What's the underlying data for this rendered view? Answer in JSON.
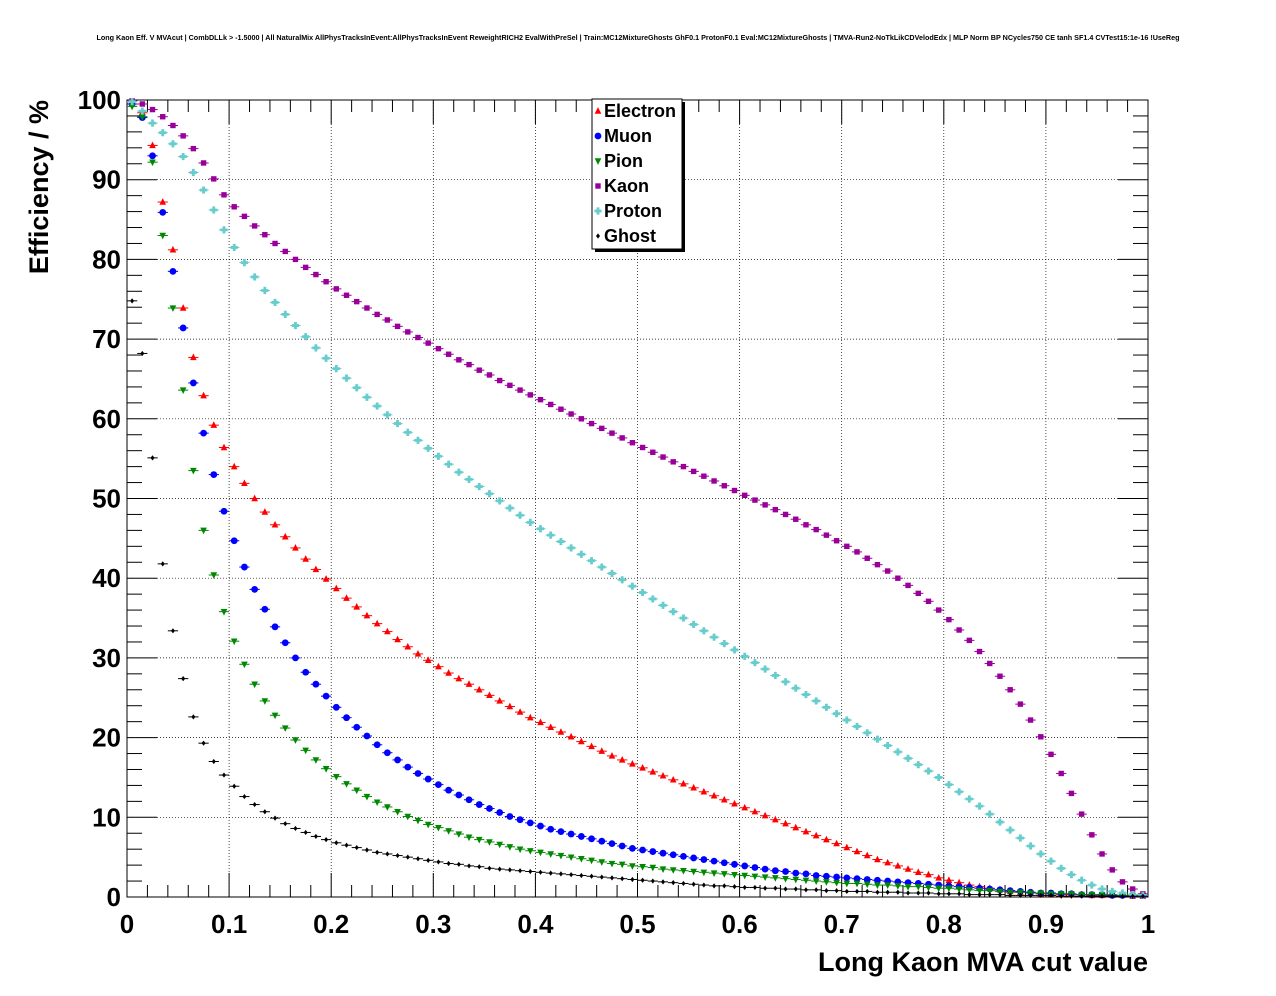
{
  "title": "Long Kaon Eff. V MVAcut | CombDLLk > -1.5000 | All NaturalMix AllPhysTracksInEvent:AllPhysTracksInEvent ReweightRICH2 EvalWithPreSel | Train:MC12MixtureGhosts GhF0.1 ProtonF0.1 Eval:MC12MixtureGhosts | TMVA-Run2-NoTkLikCDVelodEdx | MLP Norm BP NCycles750 CE tanh SF1.4 CVTest15:1e-16 !UseReg",
  "chart_data": {
    "type": "scatter",
    "title": "Long Kaon Eff. V MVAcut | CombDLLk > -1.5000 | All NaturalMix AllPhysTracksInEvent:AllPhysTracksInEvent ReweightRICH2 EvalWithPreSel | Train:MC12MixtureGhosts GhF0.1 ProtonF0.1 Eval:MC12MixtureGhosts | TMVA-Run2-NoTkLikCDVelodEdx | MLP Norm BP NCycles750 CE tanh SF1.4 CVTest15:1e-16 !UseReg",
    "xlabel": "Long Kaon MVA cut value",
    "ylabel": "Efficiency / %",
    "xlim": [
      0,
      1
    ],
    "ylim": [
      0,
      100
    ],
    "xticks": [
      "0",
      "0.1",
      "0.2",
      "0.3",
      "0.4",
      "0.5",
      "0.6",
      "0.7",
      "0.8",
      "0.9",
      "1"
    ],
    "yticks": [
      "0",
      "10",
      "20",
      "30",
      "40",
      "50",
      "60",
      "70",
      "80",
      "90",
      "100"
    ],
    "grid": true,
    "legend": "top-center",
    "x": [
      0.005,
      0.015,
      0.025,
      0.035,
      0.045,
      0.055,
      0.065,
      0.075,
      0.085,
      0.095,
      0.105,
      0.115,
      0.125,
      0.135,
      0.145,
      0.155,
      0.165,
      0.175,
      0.185,
      0.195,
      0.205,
      0.215,
      0.225,
      0.235,
      0.245,
      0.255,
      0.265,
      0.275,
      0.285,
      0.295,
      0.305,
      0.315,
      0.325,
      0.335,
      0.345,
      0.355,
      0.365,
      0.375,
      0.385,
      0.395,
      0.405,
      0.415,
      0.425,
      0.435,
      0.445,
      0.455,
      0.465,
      0.475,
      0.485,
      0.495,
      0.505,
      0.515,
      0.525,
      0.535,
      0.545,
      0.555,
      0.565,
      0.575,
      0.585,
      0.595,
      0.605,
      0.615,
      0.625,
      0.635,
      0.645,
      0.655,
      0.665,
      0.675,
      0.685,
      0.695,
      0.705,
      0.715,
      0.725,
      0.735,
      0.745,
      0.755,
      0.765,
      0.775,
      0.785,
      0.795,
      0.805,
      0.815,
      0.825,
      0.835,
      0.845,
      0.855,
      0.865,
      0.875,
      0.885,
      0.895,
      0.905,
      0.915,
      0.925,
      0.935,
      0.945,
      0.955,
      0.965,
      0.975,
      0.985,
      0.995
    ],
    "series": [
      {
        "name": "Electron",
        "color": "#ff0000",
        "marker": "triangle-up",
        "values": [
          99.8,
          98.4,
          94.3,
          87.2,
          81.2,
          73.9,
          67.7,
          62.9,
          59.2,
          56.4,
          54.0,
          51.9,
          50.0,
          48.3,
          46.7,
          45.2,
          43.8,
          42.4,
          41.1,
          39.9,
          38.7,
          37.5,
          36.4,
          35.3,
          34.3,
          33.3,
          32.3,
          31.4,
          30.5,
          29.7,
          28.9,
          28.1,
          27.4,
          26.7,
          26.0,
          25.3,
          24.6,
          23.9,
          23.2,
          22.5,
          21.9,
          21.3,
          20.7,
          20.1,
          19.5,
          18.9,
          18.3,
          17.7,
          17.2,
          16.7,
          16.2,
          15.7,
          15.2,
          14.7,
          14.2,
          13.7,
          13.2,
          12.7,
          12.2,
          11.7,
          11.2,
          10.7,
          10.2,
          9.7,
          9.2,
          8.7,
          8.2,
          7.7,
          7.2,
          6.7,
          6.2,
          5.7,
          5.2,
          4.7,
          4.3,
          3.9,
          3.5,
          3.1,
          2.8,
          2.4,
          2.1,
          1.8,
          1.5,
          1.3,
          1.1,
          0.9,
          0.7,
          0.6,
          0.5,
          0.4,
          0.4,
          0.3,
          0.3,
          0.3,
          0.2,
          0.2,
          0.2,
          0.2,
          0.1,
          0.1
        ]
      },
      {
        "name": "Muon",
        "color": "#0000ff",
        "marker": "circle",
        "values": [
          99.5,
          97.8,
          93.0,
          85.9,
          78.5,
          71.4,
          64.5,
          58.2,
          53.0,
          48.4,
          44.7,
          41.4,
          38.6,
          36.1,
          33.9,
          31.9,
          30.0,
          28.2,
          26.7,
          25.2,
          23.8,
          22.5,
          21.3,
          20.2,
          19.1,
          18.1,
          17.2,
          16.3,
          15.5,
          14.8,
          14.1,
          13.4,
          12.8,
          12.2,
          11.6,
          11.1,
          10.6,
          10.1,
          9.7,
          9.3,
          8.9,
          8.5,
          8.2,
          7.9,
          7.6,
          7.3,
          7.0,
          6.7,
          6.4,
          6.1,
          5.9,
          5.7,
          5.5,
          5.3,
          5.1,
          4.9,
          4.7,
          4.5,
          4.3,
          4.1,
          3.9,
          3.7,
          3.5,
          3.3,
          3.2,
          3.0,
          2.9,
          2.7,
          2.6,
          2.5,
          2.4,
          2.3,
          2.2,
          2.1,
          2.0,
          1.9,
          1.8,
          1.7,
          1.6,
          1.5,
          1.4,
          1.3,
          1.2,
          1.1,
          1.0,
          0.9,
          0.8,
          0.7,
          0.6,
          0.5,
          0.5,
          0.4,
          0.4,
          0.3,
          0.3,
          0.3,
          0.2,
          0.2,
          0.2,
          0.2
        ]
      },
      {
        "name": "Pion",
        "color": "#008800",
        "marker": "triangle-down",
        "values": [
          99.2,
          97.9,
          92.2,
          83.0,
          73.9,
          63.6,
          53.5,
          46.0,
          40.4,
          35.8,
          32.1,
          29.2,
          26.7,
          24.6,
          22.8,
          21.2,
          19.7,
          18.4,
          17.2,
          16.1,
          15.1,
          14.2,
          13.4,
          12.6,
          11.9,
          11.3,
          10.7,
          10.1,
          9.6,
          9.1,
          8.7,
          8.3,
          7.9,
          7.5,
          7.2,
          6.9,
          6.6,
          6.3,
          6.0,
          5.8,
          5.6,
          5.4,
          5.2,
          5.0,
          4.8,
          4.6,
          4.4,
          4.2,
          4.1,
          3.9,
          3.8,
          3.7,
          3.5,
          3.4,
          3.3,
          3.2,
          3.1,
          3.0,
          2.9,
          2.8,
          2.7,
          2.6,
          2.5,
          2.4,
          2.3,
          2.2,
          2.1,
          2.0,
          1.9,
          1.8,
          1.7,
          1.7,
          1.6,
          1.5,
          1.5,
          1.4,
          1.3,
          1.3,
          1.2,
          1.1,
          1.1,
          1.0,
          0.9,
          0.8,
          0.8,
          0.7,
          0.6,
          0.6,
          0.5,
          0.5,
          0.4,
          0.4,
          0.4,
          0.3,
          0.3,
          0.3,
          0.3,
          0.2,
          0.2,
          0.2
        ]
      },
      {
        "name": "Kaon",
        "color": "#990099",
        "marker": "square",
        "values": [
          99.9,
          99.5,
          98.8,
          97.9,
          96.8,
          95.5,
          93.9,
          92.1,
          90.1,
          88.1,
          86.6,
          85.4,
          84.2,
          83.1,
          82.0,
          81.0,
          80.0,
          79.0,
          78.1,
          77.2,
          76.3,
          75.5,
          74.7,
          73.9,
          73.1,
          72.4,
          71.6,
          70.9,
          70.2,
          69.5,
          68.8,
          68.1,
          67.4,
          66.8,
          66.1,
          65.5,
          64.8,
          64.2,
          63.6,
          63.0,
          62.4,
          61.8,
          61.2,
          60.6,
          60.0,
          59.4,
          58.8,
          58.2,
          57.6,
          57.0,
          56.4,
          55.8,
          55.2,
          54.6,
          54.0,
          53.4,
          52.8,
          52.2,
          51.6,
          51.0,
          50.4,
          49.8,
          49.2,
          48.6,
          48.0,
          47.4,
          46.7,
          46.1,
          45.4,
          44.7,
          44.0,
          43.3,
          42.5,
          41.7,
          40.9,
          40.0,
          39.1,
          38.1,
          37.1,
          36.0,
          34.8,
          33.5,
          32.2,
          30.8,
          29.3,
          27.7,
          26.0,
          24.2,
          22.2,
          20.1,
          17.9,
          15.5,
          13.0,
          10.4,
          7.8,
          5.4,
          3.4,
          1.9,
          1.0,
          0.4
        ]
      },
      {
        "name": "Proton",
        "color": "#66cccc",
        "marker": "cross",
        "values": [
          99.8,
          98.6,
          97.1,
          95.9,
          94.5,
          92.9,
          90.9,
          88.7,
          86.2,
          83.7,
          81.5,
          79.6,
          77.8,
          76.1,
          74.6,
          73.1,
          71.7,
          70.3,
          68.9,
          67.6,
          66.3,
          65.1,
          63.9,
          62.7,
          61.6,
          60.5,
          59.4,
          58.3,
          57.3,
          56.3,
          55.3,
          54.3,
          53.3,
          52.4,
          51.5,
          50.6,
          49.7,
          48.8,
          47.9,
          47.0,
          46.2,
          45.4,
          44.6,
          43.8,
          43.0,
          42.2,
          41.4,
          40.6,
          39.8,
          39.0,
          38.2,
          37.4,
          36.6,
          35.8,
          35.0,
          34.2,
          33.4,
          32.6,
          31.8,
          31.0,
          30.2,
          29.4,
          28.6,
          27.8,
          27.0,
          26.2,
          25.4,
          24.6,
          23.8,
          23.0,
          22.2,
          21.4,
          20.6,
          19.8,
          19.0,
          18.2,
          17.4,
          16.6,
          15.8,
          15.0,
          14.1,
          13.2,
          12.3,
          11.4,
          10.4,
          9.4,
          8.4,
          7.4,
          6.4,
          5.4,
          4.5,
          3.6,
          2.8,
          2.1,
          1.5,
          1.0,
          0.7,
          0.5,
          0.3,
          0.2
        ]
      },
      {
        "name": "Ghost",
        "color": "#000000",
        "marker": "diamond",
        "values": [
          74.8,
          68.2,
          55.1,
          41.8,
          33.4,
          27.4,
          22.6,
          19.3,
          17.0,
          15.3,
          13.9,
          12.6,
          11.6,
          10.7,
          9.9,
          9.2,
          8.6,
          8.1,
          7.6,
          7.2,
          6.8,
          6.5,
          6.2,
          5.9,
          5.6,
          5.4,
          5.2,
          5.0,
          4.8,
          4.6,
          4.4,
          4.2,
          4.1,
          3.9,
          3.8,
          3.6,
          3.5,
          3.4,
          3.3,
          3.2,
          3.1,
          3.0,
          2.9,
          2.8,
          2.7,
          2.6,
          2.5,
          2.4,
          2.3,
          2.2,
          2.1,
          2.0,
          1.9,
          1.8,
          1.7,
          1.6,
          1.5,
          1.4,
          1.4,
          1.3,
          1.2,
          1.2,
          1.1,
          1.1,
          1.0,
          1.0,
          0.9,
          0.9,
          0.8,
          0.8,
          0.7,
          0.7,
          0.7,
          0.6,
          0.6,
          0.6,
          0.5,
          0.5,
          0.5,
          0.4,
          0.4,
          0.4,
          0.3,
          0.3,
          0.3,
          0.3,
          0.2,
          0.2,
          0.2,
          0.2,
          0.2,
          0.1,
          0.1,
          0.1,
          0.1,
          0.1,
          0.1,
          0.1,
          0.1,
          0.1
        ]
      }
    ]
  }
}
